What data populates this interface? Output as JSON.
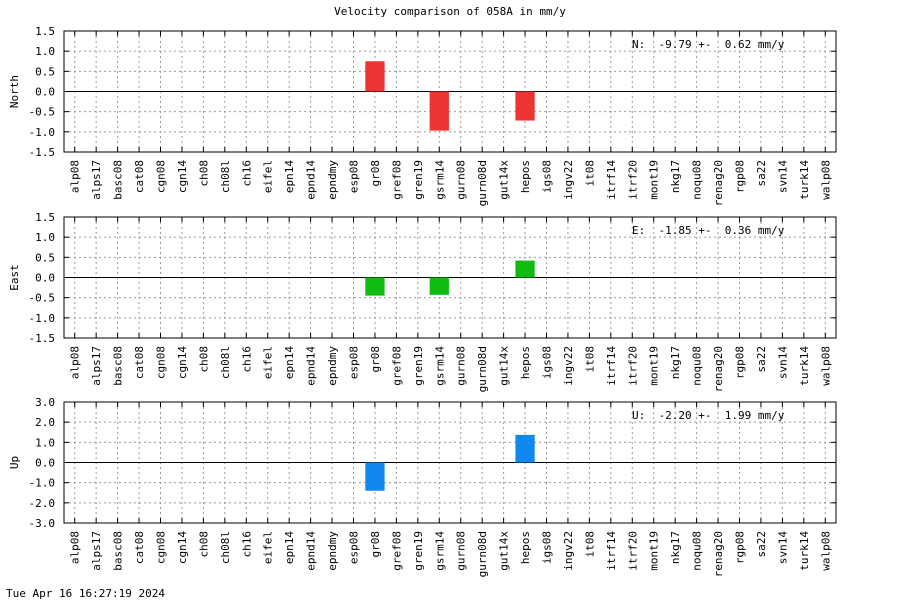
{
  "title": "Velocity comparison of 058A in mm/y",
  "footer": "Tue Apr 16 16:27:19 2024",
  "chart_data": [
    {
      "type": "bar",
      "ylabel": "North",
      "ylim": [
        -1.5,
        1.5
      ],
      "yticks": [
        "1.5",
        "1.0",
        "0.5",
        "0.0",
        "-0.5",
        "-1.0",
        "-1.5"
      ],
      "categories": [
        "alp08",
        "alps17",
        "basc08",
        "cat08",
        "cgn08",
        "cgn14",
        "ch08",
        "ch08l",
        "ch16",
        "eifel",
        "epn14",
        "epnd14",
        "epndmy",
        "esp08",
        "gr08",
        "gref08",
        "gren19",
        "gsrm14",
        "gurn08",
        "gurn08d",
        "gut14x",
        "hepos",
        "igs08",
        "ingv22",
        "it08",
        "itrf14",
        "itrf20",
        "mont19",
        "nkg17",
        "noqu08",
        "renag20",
        "rgp08",
        "sa22",
        "svn14",
        "turk14",
        "walp08"
      ],
      "values": [
        null,
        null,
        null,
        null,
        null,
        null,
        null,
        null,
        null,
        null,
        null,
        null,
        null,
        null,
        0.75,
        null,
        null,
        -0.97,
        null,
        null,
        null,
        -0.72,
        null,
        null,
        null,
        null,
        null,
        null,
        null,
        null,
        null,
        null,
        null,
        null,
        null,
        null
      ],
      "color": "#ee3333",
      "annotation": "N:  -9.79 +-  0.62 mm/y",
      "grid": true
    },
    {
      "type": "bar",
      "ylabel": "East",
      "ylim": [
        -1.5,
        1.5
      ],
      "yticks": [
        "1.5",
        "1.0",
        "0.5",
        "0.0",
        "-0.5",
        "-1.0",
        "-1.5"
      ],
      "categories": [
        "alp08",
        "alps17",
        "basc08",
        "cat08",
        "cgn08",
        "cgn14",
        "ch08",
        "ch08l",
        "ch16",
        "eifel",
        "epn14",
        "epnd14",
        "epndmy",
        "esp08",
        "gr08",
        "gref08",
        "gren19",
        "gsrm14",
        "gurn08",
        "gurn08d",
        "gut14x",
        "hepos",
        "igs08",
        "ingv22",
        "it08",
        "itrf14",
        "itrf20",
        "mont19",
        "nkg17",
        "noqu08",
        "renag20",
        "rgp08",
        "sa22",
        "svn14",
        "turk14",
        "walp08"
      ],
      "values": [
        null,
        null,
        null,
        null,
        null,
        null,
        null,
        null,
        null,
        null,
        null,
        null,
        null,
        null,
        -0.45,
        null,
        null,
        -0.43,
        null,
        null,
        null,
        0.42,
        null,
        null,
        null,
        null,
        null,
        null,
        null,
        null,
        null,
        null,
        null,
        null,
        null,
        null
      ],
      "color": "#11bb11",
      "annotation": "E:  -1.85 +-  0.36 mm/y",
      "grid": true
    },
    {
      "type": "bar",
      "ylabel": "Up",
      "ylim": [
        -3.0,
        3.0
      ],
      "yticks": [
        "3.0",
        "2.0",
        "1.0",
        "0.0",
        "-1.0",
        "-2.0",
        "-3.0"
      ],
      "categories": [
        "alp08",
        "alps17",
        "basc08",
        "cat08",
        "cgn08",
        "cgn14",
        "ch08",
        "ch08l",
        "ch16",
        "eifel",
        "epn14",
        "epnd14",
        "epndmy",
        "esp08",
        "gr08",
        "gref08",
        "gren19",
        "gsrm14",
        "gurn08",
        "gurn08d",
        "gut14x",
        "hepos",
        "igs08",
        "ingv22",
        "it08",
        "itrf14",
        "itrf20",
        "mont19",
        "nkg17",
        "noqu08",
        "renag20",
        "rgp08",
        "sa22",
        "svn14",
        "turk14",
        "walp08"
      ],
      "values": [
        null,
        null,
        null,
        null,
        null,
        null,
        null,
        null,
        null,
        null,
        null,
        null,
        null,
        null,
        -1.4,
        null,
        null,
        null,
        null,
        null,
        null,
        1.37,
        null,
        null,
        null,
        null,
        null,
        null,
        null,
        null,
        null,
        null,
        null,
        null,
        null,
        null
      ],
      "color": "#1188ee",
      "annotation": "U:  -2.20 +-  1.99 mm/y",
      "grid": true
    }
  ]
}
